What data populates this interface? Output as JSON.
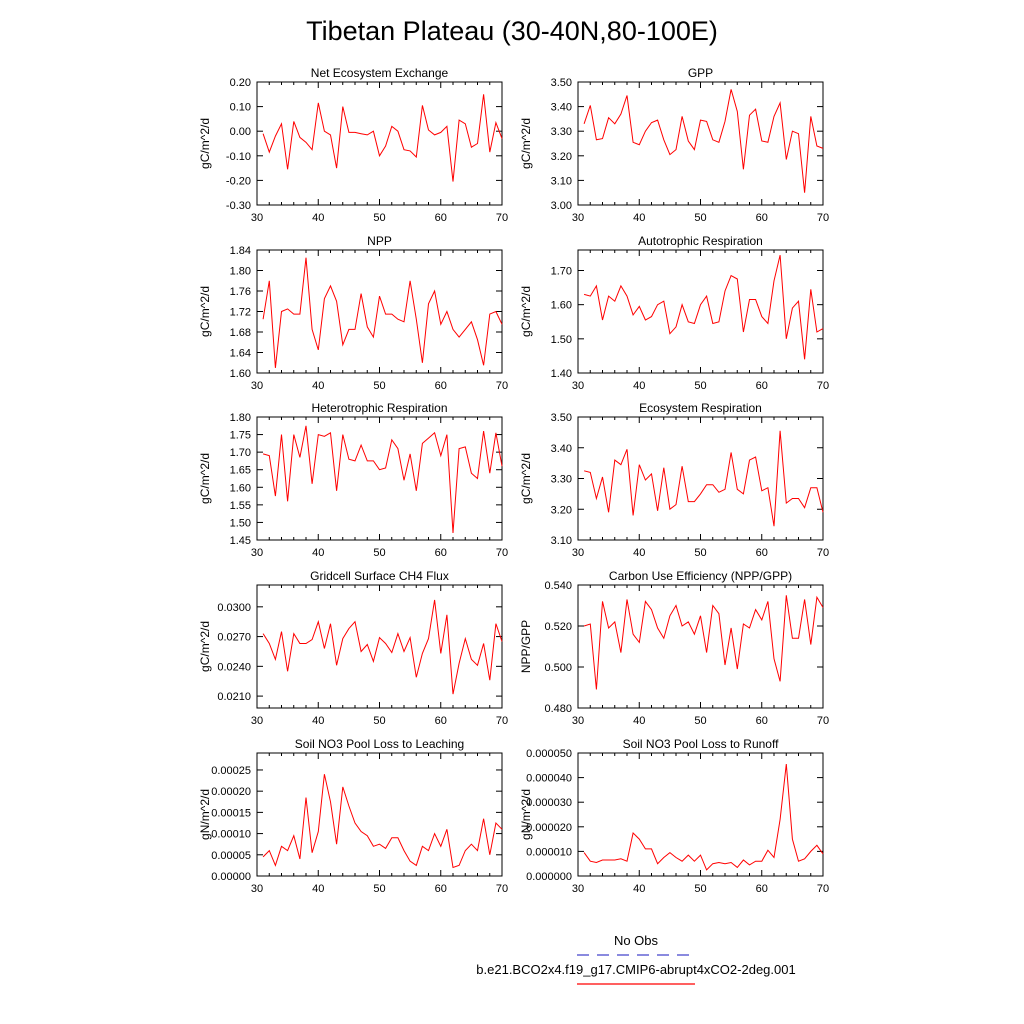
{
  "figure": {
    "title": "Tibetan Plateau (30-40N,80-100E)",
    "legend": {
      "entries": [
        {
          "label": "No Obs",
          "color": "#4444cc",
          "style": "dashed"
        },
        {
          "label": "b.e21.BCO2x4.f19_g17.CMIP6-abrupt4xCO2-2deg.001",
          "color": "#ff0000",
          "style": "solid"
        }
      ]
    }
  },
  "chart_data": [
    {
      "type": "line",
      "title": "Net Ecosystem Exchange",
      "xlabel": "",
      "ylabel": "gC/m^2/d",
      "xlim": [
        30,
        70
      ],
      "ylim": [
        -0.3,
        0.2
      ],
      "xticks": [
        30,
        40,
        50,
        60,
        70
      ],
      "yticks": [
        -0.3,
        -0.2,
        -0.1,
        0.0,
        0.1,
        0.2
      ],
      "ydecimals": 2,
      "color": "#ff0000",
      "x": [
        31,
        32,
        33,
        34,
        35,
        36,
        37,
        38,
        39,
        40,
        41,
        42,
        43,
        44,
        45,
        46,
        47,
        48,
        49,
        50,
        51,
        52,
        53,
        54,
        55,
        56,
        57,
        58,
        59,
        60,
        61,
        62,
        63,
        64,
        65,
        66,
        67,
        68,
        69,
        70
      ],
      "values": [
        -0.01,
        -0.085,
        -0.02,
        0.03,
        -0.155,
        0.04,
        -0.025,
        -0.045,
        -0.075,
        0.115,
        0.0,
        -0.015,
        -0.15,
        0.1,
        -0.005,
        -0.005,
        -0.01,
        -0.015,
        0.0,
        -0.1,
        -0.06,
        0.02,
        0.0,
        -0.075,
        -0.08,
        -0.105,
        0.105,
        0.005,
        -0.015,
        -0.005,
        0.02,
        -0.205,
        0.045,
        0.03,
        -0.065,
        -0.05,
        0.15,
        -0.085,
        0.035,
        -0.03
      ]
    },
    {
      "type": "line",
      "title": "GPP",
      "xlabel": "",
      "ylabel": "gC/m^2/d",
      "xlim": [
        30,
        70
      ],
      "ylim": [
        3.0,
        3.5
      ],
      "xticks": [
        30,
        40,
        50,
        60,
        70
      ],
      "yticks": [
        3.0,
        3.1,
        3.2,
        3.3,
        3.4,
        3.5
      ],
      "ydecimals": 2,
      "color": "#ff0000",
      "x": [
        31,
        32,
        33,
        34,
        35,
        36,
        37,
        38,
        39,
        40,
        41,
        42,
        43,
        44,
        45,
        46,
        47,
        48,
        49,
        50,
        51,
        52,
        53,
        54,
        55,
        56,
        57,
        58,
        59,
        60,
        61,
        62,
        63,
        64,
        65,
        66,
        67,
        68,
        69,
        70
      ],
      "values": [
        3.33,
        3.405,
        3.265,
        3.27,
        3.355,
        3.33,
        3.37,
        3.445,
        3.255,
        3.245,
        3.3,
        3.335,
        3.345,
        3.265,
        3.205,
        3.225,
        3.36,
        3.26,
        3.225,
        3.345,
        3.34,
        3.265,
        3.255,
        3.34,
        3.47,
        3.38,
        3.145,
        3.365,
        3.39,
        3.26,
        3.255,
        3.36,
        3.415,
        3.185,
        3.3,
        3.29,
        3.05,
        3.36,
        3.24,
        3.23
      ]
    },
    {
      "type": "line",
      "title": "NPP",
      "xlabel": "",
      "ylabel": "gC/m^2/d",
      "xlim": [
        30,
        70
      ],
      "ylim": [
        1.6,
        1.84
      ],
      "xticks": [
        30,
        40,
        50,
        60,
        70
      ],
      "yticks": [
        1.6,
        1.64,
        1.68,
        1.72,
        1.76,
        1.8,
        1.84
      ],
      "ydecimals": 2,
      "color": "#ff0000",
      "x": [
        31,
        32,
        33,
        34,
        35,
        36,
        37,
        38,
        39,
        40,
        41,
        42,
        43,
        44,
        45,
        46,
        47,
        48,
        49,
        50,
        51,
        52,
        53,
        54,
        55,
        56,
        57,
        58,
        59,
        60,
        61,
        62,
        63,
        64,
        65,
        66,
        67,
        68,
        69,
        70
      ],
      "values": [
        1.705,
        1.78,
        1.61,
        1.72,
        1.725,
        1.715,
        1.715,
        1.825,
        1.685,
        1.645,
        1.745,
        1.77,
        1.74,
        1.655,
        1.685,
        1.685,
        1.755,
        1.69,
        1.67,
        1.75,
        1.715,
        1.715,
        1.705,
        1.7,
        1.78,
        1.705,
        1.62,
        1.735,
        1.76,
        1.695,
        1.72,
        1.685,
        1.67,
        1.685,
        1.7,
        1.665,
        1.615,
        1.715,
        1.72,
        1.695
      ]
    },
    {
      "type": "line",
      "title": "Autotrophic Respiration",
      "xlabel": "",
      "ylabel": "gC/m^2/d",
      "xlim": [
        30,
        70
      ],
      "ylim": [
        1.4,
        1.76
      ],
      "xticks": [
        30,
        40,
        50,
        60,
        70
      ],
      "yticks": [
        1.4,
        1.5,
        1.6,
        1.7
      ],
      "ydecimals": 2,
      "color": "#ff0000",
      "x": [
        31,
        32,
        33,
        34,
        35,
        36,
        37,
        38,
        39,
        40,
        41,
        42,
        43,
        44,
        45,
        46,
        47,
        48,
        49,
        50,
        51,
        52,
        53,
        54,
        55,
        56,
        57,
        58,
        59,
        60,
        61,
        62,
        63,
        64,
        65,
        66,
        67,
        68,
        69,
        70
      ],
      "values": [
        1.63,
        1.625,
        1.655,
        1.555,
        1.625,
        1.61,
        1.655,
        1.625,
        1.57,
        1.595,
        1.555,
        1.565,
        1.6,
        1.61,
        1.515,
        1.535,
        1.6,
        1.55,
        1.545,
        1.6,
        1.625,
        1.545,
        1.55,
        1.64,
        1.685,
        1.675,
        1.52,
        1.615,
        1.615,
        1.565,
        1.545,
        1.67,
        1.745,
        1.5,
        1.59,
        1.61,
        1.44,
        1.645,
        1.52,
        1.53
      ]
    },
    {
      "type": "line",
      "title": "Heterotrophic Respiration",
      "xlabel": "",
      "ylabel": "gC/m^2/d",
      "xlim": [
        30,
        70
      ],
      "ylim": [
        1.45,
        1.8
      ],
      "xticks": [
        30,
        40,
        50,
        60,
        70
      ],
      "yticks": [
        1.45,
        1.5,
        1.55,
        1.6,
        1.65,
        1.7,
        1.75,
        1.8
      ],
      "ydecimals": 2,
      "color": "#ff0000",
      "x": [
        31,
        32,
        33,
        34,
        35,
        36,
        37,
        38,
        39,
        40,
        41,
        42,
        43,
        44,
        45,
        46,
        47,
        48,
        49,
        50,
        51,
        52,
        53,
        54,
        55,
        56,
        57,
        58,
        59,
        60,
        61,
        62,
        63,
        64,
        65,
        66,
        67,
        68,
        69,
        70
      ],
      "values": [
        1.695,
        1.69,
        1.575,
        1.75,
        1.56,
        1.75,
        1.685,
        1.775,
        1.61,
        1.75,
        1.745,
        1.755,
        1.59,
        1.75,
        1.68,
        1.675,
        1.72,
        1.675,
        1.675,
        1.65,
        1.655,
        1.735,
        1.71,
        1.62,
        1.695,
        1.59,
        1.725,
        1.74,
        1.755,
        1.69,
        1.75,
        1.47,
        1.71,
        1.715,
        1.64,
        1.625,
        1.76,
        1.64,
        1.755,
        1.66
      ]
    },
    {
      "type": "line",
      "title": "Ecosystem Respiration",
      "xlabel": "",
      "ylabel": "gC/m^2/d",
      "xlim": [
        30,
        70
      ],
      "ylim": [
        3.1,
        3.5
      ],
      "xticks": [
        30,
        40,
        50,
        60,
        70
      ],
      "yticks": [
        3.1,
        3.2,
        3.3,
        3.4,
        3.5
      ],
      "ydecimals": 2,
      "color": "#ff0000",
      "x": [
        31,
        32,
        33,
        34,
        35,
        36,
        37,
        38,
        39,
        40,
        41,
        42,
        43,
        44,
        45,
        46,
        47,
        48,
        49,
        50,
        51,
        52,
        53,
        54,
        55,
        56,
        57,
        58,
        59,
        60,
        61,
        62,
        63,
        64,
        65,
        66,
        67,
        68,
        69,
        70
      ],
      "values": [
        3.325,
        3.32,
        3.235,
        3.305,
        3.19,
        3.36,
        3.345,
        3.395,
        3.18,
        3.345,
        3.295,
        3.315,
        3.195,
        3.335,
        3.2,
        3.215,
        3.34,
        3.225,
        3.225,
        3.25,
        3.28,
        3.28,
        3.255,
        3.265,
        3.385,
        3.265,
        3.25,
        3.36,
        3.37,
        3.26,
        3.27,
        3.145,
        3.455,
        3.22,
        3.235,
        3.235,
        3.205,
        3.27,
        3.27,
        3.19
      ]
    },
    {
      "type": "line",
      "title": "Gridcell Surface CH4 Flux",
      "xlabel": "",
      "ylabel": "gC/m^2/d",
      "xlim": [
        30,
        70
      ],
      "ylim": [
        0.0198,
        0.0322
      ],
      "xticks": [
        30,
        40,
        50,
        60,
        70
      ],
      "yticks": [
        0.021,
        0.024,
        0.027,
        0.03
      ],
      "ydecimals": 4,
      "color": "#ff0000",
      "x": [
        31,
        32,
        33,
        34,
        35,
        36,
        37,
        38,
        39,
        40,
        41,
        42,
        43,
        44,
        45,
        46,
        47,
        48,
        49,
        50,
        51,
        52,
        53,
        54,
        55,
        56,
        57,
        58,
        59,
        60,
        61,
        62,
        63,
        64,
        65,
        66,
        67,
        68,
        69,
        70
      ],
      "values": [
        0.0273,
        0.0263,
        0.0247,
        0.0275,
        0.0235,
        0.0273,
        0.0263,
        0.0263,
        0.0267,
        0.0285,
        0.0258,
        0.0283,
        0.0241,
        0.0268,
        0.0278,
        0.0285,
        0.0255,
        0.0262,
        0.0245,
        0.0269,
        0.0263,
        0.0254,
        0.0273,
        0.0255,
        0.0269,
        0.0229,
        0.0253,
        0.0268,
        0.0307,
        0.0253,
        0.0292,
        0.0212,
        0.0243,
        0.0268,
        0.0247,
        0.0241,
        0.0263,
        0.0226,
        0.0283,
        0.0265
      ]
    },
    {
      "type": "line",
      "title": "Carbon Use Efficiency (NPP/GPP)",
      "xlabel": "",
      "ylabel": "NPP/GPP",
      "xlim": [
        30,
        70
      ],
      "ylim": [
        0.48,
        0.54
      ],
      "xticks": [
        30,
        40,
        50,
        60,
        70
      ],
      "yticks": [
        0.48,
        0.5,
        0.52,
        0.54
      ],
      "ydecimals": 3,
      "color": "#ff0000",
      "x": [
        31,
        32,
        33,
        34,
        35,
        36,
        37,
        38,
        39,
        40,
        41,
        42,
        43,
        44,
        45,
        46,
        47,
        48,
        49,
        50,
        51,
        52,
        53,
        54,
        55,
        56,
        57,
        58,
        59,
        60,
        61,
        62,
        63,
        64,
        65,
        66,
        67,
        68,
        69,
        70
      ],
      "values": [
        0.52,
        0.521,
        0.489,
        0.532,
        0.519,
        0.522,
        0.507,
        0.533,
        0.516,
        0.512,
        0.532,
        0.528,
        0.519,
        0.514,
        0.525,
        0.53,
        0.52,
        0.522,
        0.516,
        0.525,
        0.507,
        0.53,
        0.526,
        0.501,
        0.519,
        0.499,
        0.521,
        0.519,
        0.528,
        0.523,
        0.532,
        0.504,
        0.493,
        0.535,
        0.514,
        0.514,
        0.533,
        0.511,
        0.534,
        0.529
      ]
    },
    {
      "type": "line",
      "title": "Soil NO3 Pool Loss to Leaching",
      "xlabel": "",
      "ylabel": "gN/m^2/d",
      "xlim": [
        30,
        70
      ],
      "ylim": [
        0,
        0.00029
      ],
      "xticks": [
        30,
        40,
        50,
        60,
        70
      ],
      "yticks": [
        0.0,
        5e-05,
        0.0001,
        0.00015,
        0.0002,
        0.00025
      ],
      "ydecimals": 5,
      "color": "#ff0000",
      "x": [
        31,
        32,
        33,
        34,
        35,
        36,
        37,
        38,
        39,
        40,
        41,
        42,
        43,
        44,
        45,
        46,
        47,
        48,
        49,
        50,
        51,
        52,
        53,
        54,
        55,
        56,
        57,
        58,
        59,
        60,
        61,
        62,
        63,
        64,
        65,
        66,
        67,
        68,
        69,
        70
      ],
      "values": [
        4.5e-05,
        6e-05,
        2.5e-05,
        7e-05,
        6e-05,
        9.5e-05,
        4e-05,
        0.000185,
        5.5e-05,
        0.000105,
        0.00024,
        0.000175,
        7.5e-05,
        0.00021,
        0.000165,
        0.000125,
        0.000105,
        9.5e-05,
        7e-05,
        7.5e-05,
        6.5e-05,
        9e-05,
        9e-05,
        6e-05,
        3.5e-05,
        2.5e-05,
        7e-05,
        6e-05,
        0.0001,
        7e-05,
        0.00011,
        2e-05,
        2.5e-05,
        6e-05,
        7.5e-05,
        6e-05,
        0.000135,
        5e-05,
        0.000125,
        0.00011
      ]
    },
    {
      "type": "line",
      "title": "Soil NO3 Pool Loss to Runoff",
      "xlabel": "",
      "ylabel": "gN/m^2/d",
      "xlim": [
        30,
        70
      ],
      "ylim": [
        0,
        5e-05
      ],
      "xticks": [
        30,
        40,
        50,
        60,
        70
      ],
      "yticks": [
        0.0,
        1e-05,
        2e-05,
        3e-05,
        4e-05,
        5e-05
      ],
      "ydecimals": 6,
      "color": "#ff0000",
      "x": [
        31,
        32,
        33,
        34,
        35,
        36,
        37,
        38,
        39,
        40,
        41,
        42,
        43,
        44,
        45,
        46,
        47,
        48,
        49,
        50,
        51,
        52,
        53,
        54,
        55,
        56,
        57,
        58,
        59,
        60,
        61,
        62,
        63,
        64,
        65,
        66,
        67,
        68,
        69,
        70
      ],
      "values": [
        9.5e-06,
        6e-06,
        5.5e-06,
        6.5e-06,
        6.5e-06,
        6.5e-06,
        7e-06,
        6e-06,
        1.75e-05,
        1.5e-05,
        1.1e-05,
        1.1e-05,
        5e-06,
        7.5e-06,
        9.5e-06,
        7.5e-06,
        6e-06,
        8.5e-06,
        6e-06,
        8.5e-06,
        2.5e-06,
        5e-06,
        5.5e-06,
        5e-06,
        5.5e-06,
        3.5e-06,
        6.5e-06,
        4.5e-06,
        6e-06,
        6e-06,
        1.05e-05,
        7.5e-06,
        2.3e-05,
        4.55e-05,
        1.5e-05,
        6e-06,
        7e-06,
        1e-05,
        1.25e-05,
        9e-06
      ]
    }
  ]
}
